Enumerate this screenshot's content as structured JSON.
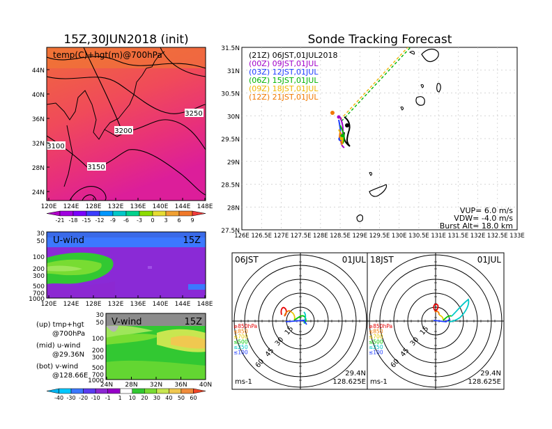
{
  "left_title": "15Z,30JUN2018 (init)",
  "right_title": "Sonde Tracking Forecast",
  "map700": {
    "label": "temp(C)+hgt(m)@700hPa",
    "lat_ticks": [
      "44N",
      "40N",
      "36N",
      "32N",
      "28N",
      "24N"
    ],
    "lon_ticks": [
      "120E",
      "124E",
      "128E",
      "132E",
      "136E",
      "140E",
      "144E",
      "148E"
    ],
    "contour_labels": [
      "3250",
      "3200",
      "3150",
      "3100"
    ]
  },
  "temp_colorbar": {
    "labels": [
      "-21",
      "-18",
      "-15",
      "-12",
      "-9",
      "-6",
      "-3",
      "0",
      "3",
      "6",
      "9"
    ],
    "colors": [
      "#b000c8",
      "#a000e0",
      "#7a00ff",
      "#3c3cff",
      "#0096ff",
      "#00c8c8",
      "#00d28c",
      "#8cdc00",
      "#e6dc32",
      "#f0a032",
      "#f07828",
      "#f03c3c"
    ]
  },
  "uwind": {
    "label": "U-wind",
    "time": "15Z",
    "p_ticks": [
      "30",
      "50",
      "100",
      "200",
      "300",
      "500",
      "700",
      "1000"
    ],
    "lon_ticks": [
      "120E",
      "124E",
      "128E",
      "132E",
      "136E",
      "140E",
      "144E",
      "148E"
    ]
  },
  "vwind": {
    "label": "V-wind",
    "time": "15Z",
    "p_ticks": [
      "30",
      "50",
      "100",
      "200",
      "300",
      "500",
      "700",
      "1000"
    ],
    "lat_ticks": [
      "24N",
      "28N",
      "32N",
      "36N",
      "40N"
    ]
  },
  "notes": [
    "(up) tmp+hgt",
    "@700hPa",
    "(mid) u-wind",
    "@29.36N",
    "(bot) v-wind",
    "@128.66E"
  ],
  "wind_colorbar": {
    "labels": [
      "-40",
      "-30",
      "-20",
      "-10",
      "-1",
      "1",
      "10",
      "20",
      "30",
      "40",
      "50",
      "60"
    ],
    "colors": [
      "#00b4f0",
      "#00c8ff",
      "#3c78ff",
      "#5a3cf0",
      "#8c28d2",
      "#9600c8",
      "#ffffff",
      "#32c832",
      "#78dc32",
      "#c8e650",
      "#f0c850",
      "#f08c3c",
      "#f04628"
    ]
  },
  "tracking": {
    "legend": [
      {
        "text": "(21Z)  06JST,01JUL2018",
        "color": "#000000"
      },
      {
        "text": "(00Z)  09JST,01JUL",
        "color": "#a000c8"
      },
      {
        "text": "(03Z)  12JST,01JUL",
        "color": "#1e3cff"
      },
      {
        "text": "(06Z)  15JST,01JUL",
        "color": "#00b400"
      },
      {
        "text": "(09Z)  18JST,01JUL",
        "color": "#f0b400"
      },
      {
        "text": "(12Z)  21JST,01JUL",
        "color": "#f07800"
      }
    ],
    "lat_ticks": [
      "31.5N",
      "31N",
      "30.5N",
      "30N",
      "29.5N",
      "29N",
      "28.5N",
      "28N",
      "27.5N"
    ],
    "lon_ticks": [
      "126E",
      "126.5E",
      "127E",
      "127.5E",
      "128E",
      "128.5E",
      "129E",
      "129.5E",
      "130E",
      "130.5E",
      "131E",
      "131.5E",
      "132E",
      "132.5E",
      "133E"
    ],
    "vup": "VUP=  6.0  m/s",
    "vdw": "VDW=  -4.0  m/s",
    "burst": "Burst Alt=  18.0  km"
  },
  "polar_left": {
    "time": "06JST",
    "date": "01JUL",
    "lat": "29.4N",
    "lon": "128.625E",
    "unit": "ms-1",
    "ring_labels": [
      "15",
      "30",
      "45",
      "60"
    ],
    "levels": [
      {
        "text": "≥850hPa",
        "color": "#e60000"
      },
      {
        "text": "≤850",
        "color": "#f07800"
      },
      {
        "text": "≤700",
        "color": "#e6c800"
      },
      {
        "text": "≤500",
        "color": "#00c800"
      },
      {
        "text": "≤250",
        "color": "#00c8c8"
      },
      {
        "text": "≤100",
        "color": "#1e3cff"
      }
    ]
  },
  "polar_right": {
    "time": "18JST",
    "date": "01JUL",
    "lat": "29.4N",
    "lon": "128.625E",
    "unit": "ms-1",
    "ring_labels": [
      "15",
      "30",
      "45",
      "60"
    ],
    "levels": [
      {
        "text": "≥850hPa",
        "color": "#e60000"
      },
      {
        "text": "≤850",
        "color": "#f07800"
      },
      {
        "text": "≤700",
        "color": "#e6c800"
      },
      {
        "text": "≤500",
        "color": "#00c800"
      },
      {
        "text": "≤250",
        "color": "#00c8c8"
      },
      {
        "text": "≤100",
        "color": "#1e3cff"
      }
    ]
  }
}
